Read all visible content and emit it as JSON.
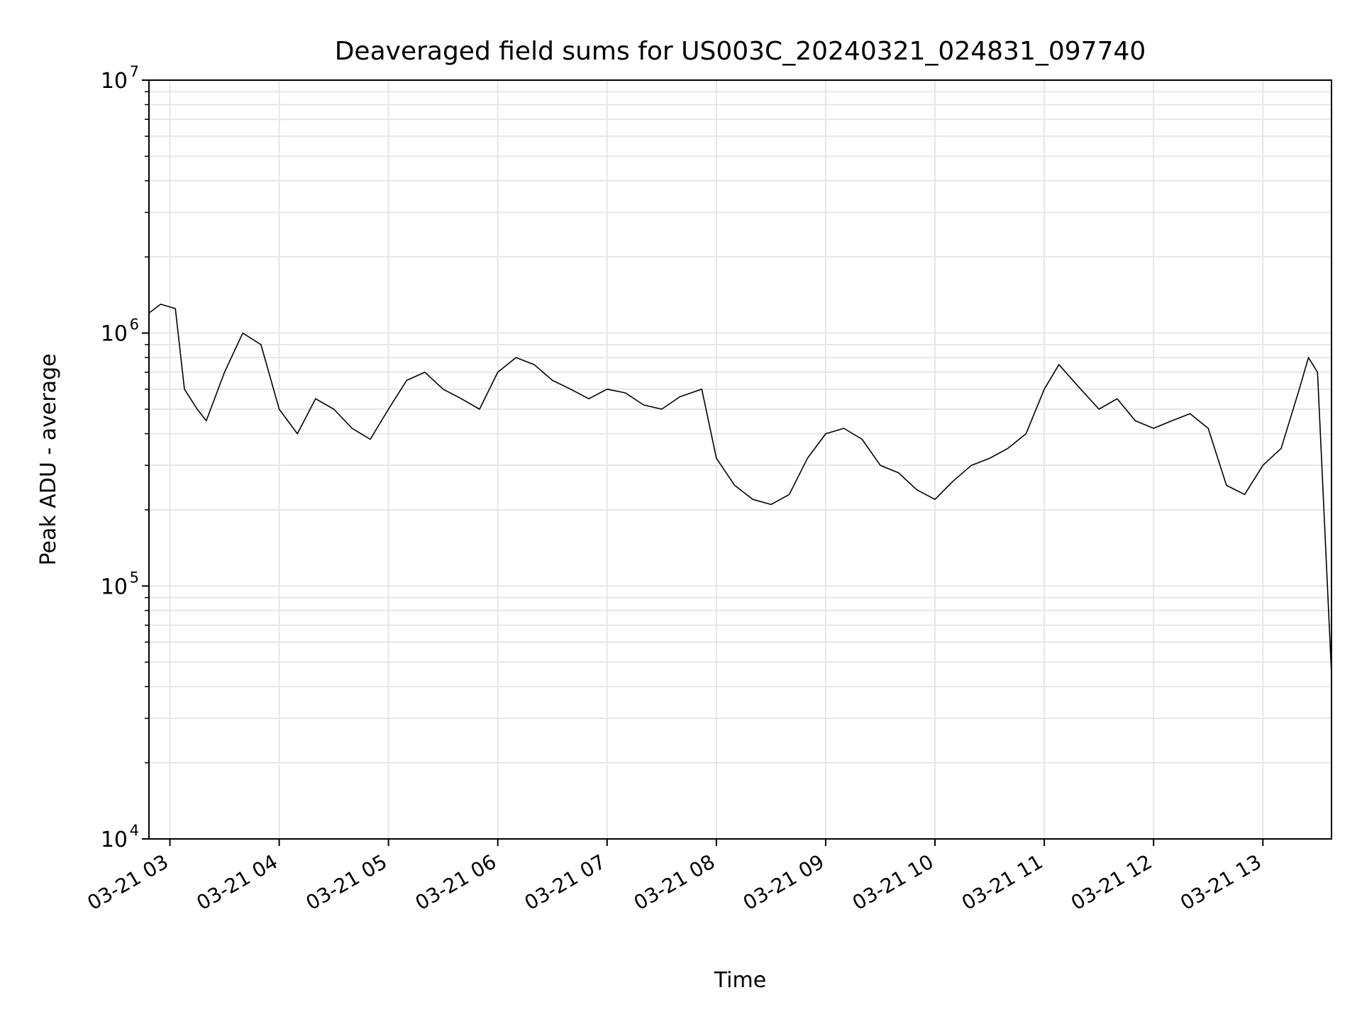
{
  "chart_data": {
    "type": "line",
    "title": "Deaveraged field sums for US003C_20240321_024831_097740",
    "xlabel": "Time",
    "ylabel": "Peak ADU - average",
    "yscale": "log",
    "ylim": [
      10000,
      10000000
    ],
    "xlim": [
      "2024-03-21T02:48:31",
      "2024-03-21T13:37:40"
    ],
    "y_ticks": [
      {
        "value": 10000,
        "base": "10",
        "exp": "4"
      },
      {
        "value": 100000,
        "base": "10",
        "exp": "5"
      },
      {
        "value": 1000000,
        "base": "10",
        "exp": "6"
      },
      {
        "value": 10000000,
        "base": "10",
        "exp": "7"
      }
    ],
    "x_ticks": [
      {
        "value": "2024-03-21T03:00:00",
        "label": "03-21 03"
      },
      {
        "value": "2024-03-21T04:00:00",
        "label": "03-21 04"
      },
      {
        "value": "2024-03-21T05:00:00",
        "label": "03-21 05"
      },
      {
        "value": "2024-03-21T06:00:00",
        "label": "03-21 06"
      },
      {
        "value": "2024-03-21T07:00:00",
        "label": "03-21 07"
      },
      {
        "value": "2024-03-21T08:00:00",
        "label": "03-21 08"
      },
      {
        "value": "2024-03-21T09:00:00",
        "label": "03-21 09"
      },
      {
        "value": "2024-03-21T10:00:00",
        "label": "03-21 10"
      },
      {
        "value": "2024-03-21T11:00:00",
        "label": "03-21 11"
      },
      {
        "value": "2024-03-21T12:00:00",
        "label": "03-21 12"
      },
      {
        "value": "2024-03-21T13:00:00",
        "label": "03-21 13"
      }
    ],
    "grid": true,
    "line_color": "#000000",
    "grid_color": "#e6e6e6",
    "series": [
      {
        "x": [
          "2024-03-21T02:48:31",
          "2024-03-21T02:55:00",
          "2024-03-21T03:03:00",
          "2024-03-21T03:08:00",
          "2024-03-21T03:15:00",
          "2024-03-21T03:20:00",
          "2024-03-21T03:30:00",
          "2024-03-21T03:40:00",
          "2024-03-21T03:50:00",
          "2024-03-21T04:00:00",
          "2024-03-21T04:10:00",
          "2024-03-21T04:20:00",
          "2024-03-21T04:30:00",
          "2024-03-21T04:40:00",
          "2024-03-21T04:50:00",
          "2024-03-21T05:00:00",
          "2024-03-21T05:10:00",
          "2024-03-21T05:20:00",
          "2024-03-21T05:30:00",
          "2024-03-21T05:40:00",
          "2024-03-21T05:50:00",
          "2024-03-21T06:00:00",
          "2024-03-21T06:10:00",
          "2024-03-21T06:20:00",
          "2024-03-21T06:30:00",
          "2024-03-21T06:40:00",
          "2024-03-21T06:50:00",
          "2024-03-21T07:00:00",
          "2024-03-21T07:10:00",
          "2024-03-21T07:20:00",
          "2024-03-21T07:30:00",
          "2024-03-21T07:40:00",
          "2024-03-21T07:52:00",
          "2024-03-21T08:00:00",
          "2024-03-21T08:10:00",
          "2024-03-21T08:20:00",
          "2024-03-21T08:30:00",
          "2024-03-21T08:40:00",
          "2024-03-21T08:50:00",
          "2024-03-21T09:00:00",
          "2024-03-21T09:10:00",
          "2024-03-21T09:20:00",
          "2024-03-21T09:30:00",
          "2024-03-21T09:40:00",
          "2024-03-21T09:50:00",
          "2024-03-21T10:00:00",
          "2024-03-21T10:10:00",
          "2024-03-21T10:20:00",
          "2024-03-21T10:30:00",
          "2024-03-21T10:40:00",
          "2024-03-21T10:50:00",
          "2024-03-21T11:00:00",
          "2024-03-21T11:08:00",
          "2024-03-21T11:20:00",
          "2024-03-21T11:30:00",
          "2024-03-21T11:40:00",
          "2024-03-21T11:50:00",
          "2024-03-21T12:00:00",
          "2024-03-21T12:10:00",
          "2024-03-21T12:20:00",
          "2024-03-21T12:30:00",
          "2024-03-21T12:40:00",
          "2024-03-21T12:50:00",
          "2024-03-21T13:00:00",
          "2024-03-21T13:10:00",
          "2024-03-21T13:20:00",
          "2024-03-21T13:25:00",
          "2024-03-21T13:30:00",
          "2024-03-21T13:37:40"
        ],
        "y": [
          1200000,
          1300000,
          1250000,
          600000,
          500000,
          450000,
          700000,
          1000000,
          900000,
          500000,
          400000,
          550000,
          500000,
          420000,
          380000,
          500000,
          650000,
          700000,
          600000,
          550000,
          500000,
          700000,
          800000,
          750000,
          650000,
          600000,
          550000,
          600000,
          580000,
          520000,
          500000,
          560000,
          600000,
          320000,
          250000,
          220000,
          210000,
          230000,
          320000,
          400000,
          420000,
          380000,
          300000,
          280000,
          240000,
          220000,
          260000,
          300000,
          320000,
          350000,
          400000,
          600000,
          750000,
          600000,
          500000,
          550000,
          450000,
          420000,
          450000,
          480000,
          420000,
          250000,
          230000,
          300000,
          350000,
          600000,
          800000,
          700000,
          45000
        ]
      }
    ]
  }
}
